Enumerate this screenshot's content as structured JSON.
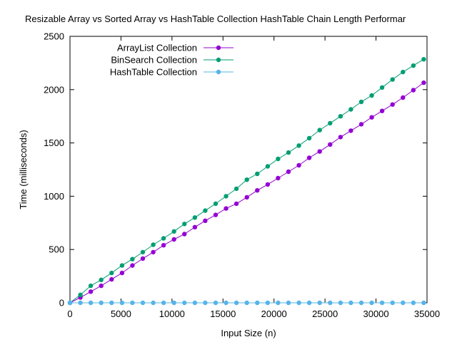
{
  "chart_data": {
    "type": "line",
    "title": "Resizable Array vs Sorted Array vs HashTable Collection HashTable Chain Length Performar",
    "xlabel": "Input Size (n)",
    "ylabel": "Time (milliseconds)",
    "xlim": [
      0,
      35000
    ],
    "ylim": [
      0,
      2500
    ],
    "xticks": [
      0,
      5000,
      10000,
      15000,
      20000,
      25000,
      30000,
      35000
    ],
    "yticks": [
      0,
      500,
      1000,
      1500,
      2000,
      2500
    ],
    "grid": false,
    "legend_position": "top-left",
    "x": [
      0,
      1020,
      2040,
      3060,
      4080,
      5100,
      6120,
      7140,
      8160,
      9180,
      10200,
      11220,
      12240,
      13260,
      14280,
      15300,
      16320,
      17340,
      18360,
      19380,
      20400,
      21420,
      22440,
      23460,
      24480,
      25500,
      26520,
      27540,
      28560,
      29580,
      30600,
      31620,
      32640,
      33660,
      34680
    ],
    "series": [
      {
        "name": "ArrayList Collection",
        "color": "#9400d3",
        "values": [
          0,
          50,
          105,
          160,
          220,
          280,
          350,
          415,
          475,
          540,
          595,
          645,
          710,
          770,
          825,
          885,
          930,
          990,
          1055,
          1110,
          1170,
          1230,
          1290,
          1360,
          1420,
          1485,
          1555,
          1615,
          1675,
          1740,
          1800,
          1860,
          1925,
          1995,
          2065
        ]
      },
      {
        "name": "BinSearch Collection",
        "color": "#009e73",
        "values": [
          0,
          75,
          160,
          215,
          280,
          350,
          410,
          475,
          545,
          605,
          670,
          740,
          800,
          865,
          930,
          1000,
          1070,
          1155,
          1210,
          1280,
          1350,
          1410,
          1475,
          1545,
          1620,
          1685,
          1750,
          1815,
          1885,
          1945,
          2020,
          2095,
          2165,
          2225,
          2285
        ]
      },
      {
        "name": "HashTable Collection",
        "color": "#56b4e9",
        "values": [
          0,
          0,
          0,
          0,
          0,
          0,
          0,
          0,
          0,
          0,
          0,
          0,
          0,
          0,
          0,
          0,
          0,
          0,
          0,
          0,
          0,
          0,
          0,
          0,
          0,
          0,
          0,
          0,
          0,
          0,
          0,
          0,
          0,
          0,
          0
        ]
      }
    ]
  }
}
